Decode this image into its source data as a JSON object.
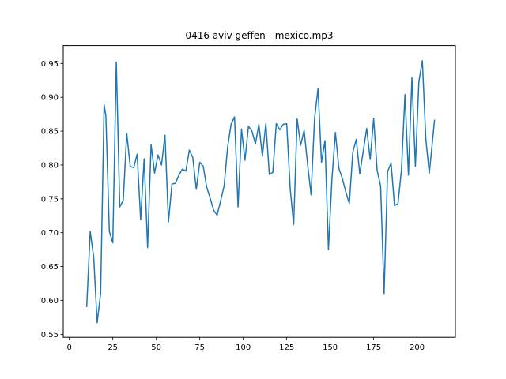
{
  "chart_data": {
    "type": "line",
    "title": "0416 aviv geffen - mexico.mp3",
    "xlabel": "",
    "ylabel": "",
    "xlim": [
      -3.5,
      222
    ],
    "ylim": [
      0.5455,
      0.9765
    ],
    "xticks": [
      0,
      25,
      50,
      75,
      100,
      125,
      150,
      175,
      200
    ],
    "yticks": [
      0.55,
      0.6,
      0.65,
      0.7,
      0.75,
      0.8,
      0.85,
      0.9,
      0.95
    ],
    "ytick_labels": [
      "0.55",
      "0.60",
      "0.65",
      "0.70",
      "0.75",
      "0.80",
      "0.85",
      "0.90",
      "0.95"
    ],
    "grid": false,
    "series": [
      {
        "color": "#1f77b4",
        "x": [
          10,
          12,
          14,
          16,
          18,
          20,
          21,
          23,
          25,
          27,
          29,
          31,
          33,
          35,
          37,
          39,
          41,
          43,
          45,
          47,
          49,
          51,
          53,
          55,
          57,
          59,
          61,
          63,
          65,
          67,
          69,
          71,
          73,
          75,
          77,
          79,
          81,
          83,
          85,
          87,
          89,
          91,
          93,
          95,
          97,
          99,
          101,
          103,
          105,
          107,
          109,
          111,
          113,
          115,
          117,
          119,
          121,
          123,
          125,
          127,
          129,
          131,
          133,
          135,
          137,
          139,
          141,
          143,
          145,
          147,
          149,
          151,
          153,
          155,
          157,
          159,
          161,
          163,
          165,
          167,
          169,
          171,
          173,
          175,
          177,
          179,
          181,
          183,
          185,
          187,
          189,
          191,
          193,
          195,
          197,
          199,
          201,
          203,
          205,
          207,
          210
        ],
        "y": [
          0.591,
          0.702,
          0.664,
          0.567,
          0.611,
          0.889,
          0.873,
          0.702,
          0.685,
          0.952,
          0.738,
          0.748,
          0.847,
          0.798,
          0.796,
          0.816,
          0.719,
          0.809,
          0.678,
          0.83,
          0.788,
          0.815,
          0.8,
          0.844,
          0.716,
          0.772,
          0.773,
          0.785,
          0.794,
          0.791,
          0.822,
          0.811,
          0.764,
          0.804,
          0.798,
          0.767,
          0.751,
          0.733,
          0.726,
          0.747,
          0.769,
          0.826,
          0.86,
          0.871,
          0.738,
          0.853,
          0.807,
          0.857,
          0.85,
          0.831,
          0.86,
          0.813,
          0.861,
          0.786,
          0.789,
          0.861,
          0.852,
          0.86,
          0.861,
          0.765,
          0.712,
          0.868,
          0.829,
          0.851,
          0.801,
          0.756,
          0.868,
          0.913,
          0.804,
          0.836,
          0.675,
          0.779,
          0.848,
          0.795,
          0.78,
          0.76,
          0.743,
          0.819,
          0.838,
          0.787,
          0.82,
          0.854,
          0.808,
          0.869,
          0.792,
          0.769,
          0.61,
          0.79,
          0.803,
          0.74,
          0.743,
          0.793,
          0.904,
          0.785,
          0.929,
          0.798,
          0.923,
          0.954,
          0.838,
          0.788,
          0.866
        ]
      }
    ]
  }
}
